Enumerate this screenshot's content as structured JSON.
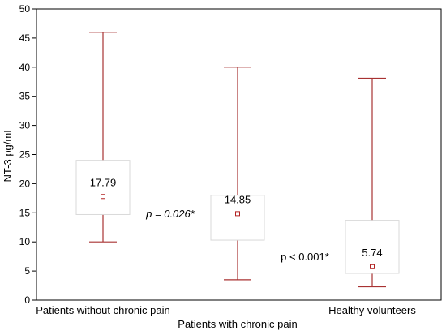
{
  "chart_data": {
    "type": "box",
    "ylabel": "NT-3 pg/mL",
    "ylim": [
      0,
      50
    ],
    "y_ticks": [
      0,
      5,
      10,
      15,
      20,
      25,
      30,
      35,
      40,
      45,
      50
    ],
    "y_tick_labels": [
      "0",
      "5",
      "10",
      "15",
      "20",
      "25",
      "30",
      "35",
      "40",
      "45",
      "50"
    ],
    "grid": false,
    "colors": {
      "whisker": "#a83232",
      "marker": "#b22222",
      "box": "#d8d8d8"
    },
    "groups": [
      {
        "name": "Patients without chronic pain",
        "min": 10,
        "q1": 14.7,
        "median": 17.79,
        "q3": 24,
        "max": 46,
        "value_label": "17.79"
      },
      {
        "name": "Patients with chronic pain",
        "min": 3.5,
        "q1": 10.3,
        "median": 14.85,
        "q3": 18,
        "max": 40,
        "value_label": "14.85"
      },
      {
        "name": "Healthy volunteers",
        "min": 2.3,
        "q1": 4.6,
        "median": 5.74,
        "q3": 13.7,
        "max": 38.1,
        "value_label": "5.74"
      }
    ],
    "annotations": [
      {
        "text": "p = 0.026*",
        "italic": true,
        "x_between": [
          0,
          1
        ],
        "y": 14.2
      },
      {
        "text": "p < 0.001*",
        "italic": false,
        "x_between": [
          1,
          2
        ],
        "y": 6.8
      }
    ]
  }
}
